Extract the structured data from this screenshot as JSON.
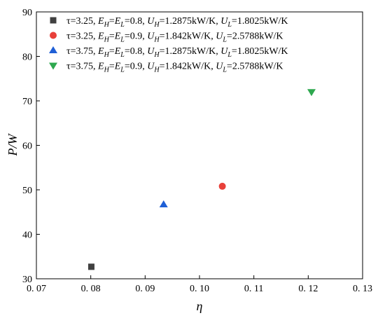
{
  "chart_data": {
    "type": "scatter",
    "xlabel": "η",
    "ylabel": "P/W",
    "xlim": [
      0.07,
      0.13
    ],
    "ylim": [
      30,
      90
    ],
    "xticks": [
      0.07,
      0.08,
      0.09,
      0.1,
      0.11,
      0.12,
      0.13
    ],
    "xtick_labels": [
      "0. 07",
      "0. 08",
      "0. 09",
      "0. 10",
      "0. 11",
      "0. 12",
      "0. 13"
    ],
    "yticks": [
      30,
      40,
      50,
      60,
      70,
      80,
      90
    ],
    "ytick_labels": [
      "30",
      "40",
      "50",
      "60",
      "70",
      "80",
      "90"
    ],
    "grid": false,
    "legend_position": "top-left",
    "series": [
      {
        "name": "τ=3.25, EH=EL=0.8, UH=1.2875kW/K, UL=1.8025kW/K",
        "legend_parts": [
          {
            "t": "τ=3.25, ",
            "i": false
          },
          {
            "t": "E",
            "i": true
          },
          {
            "t": "H",
            "i": true,
            "sub": true
          },
          {
            "t": "=",
            "i": false
          },
          {
            "t": "E",
            "i": true
          },
          {
            "t": "L",
            "i": true,
            "sub": true
          },
          {
            "t": "=0.8, ",
            "i": false
          },
          {
            "t": "U",
            "i": true
          },
          {
            "t": "H",
            "i": true,
            "sub": true
          },
          {
            "t": "=1.2875kW/K, ",
            "i": false
          },
          {
            "t": "U",
            "i": true
          },
          {
            "t": "L",
            "i": true,
            "sub": true
          },
          {
            "t": "=1.8025kW/K",
            "i": false
          }
        ],
        "marker": "square",
        "color": "#404040",
        "x": [
          0.0801
        ],
        "y": [
          32.7
        ]
      },
      {
        "name": "τ=3.25, EH=EL=0.9, UH=1.842kW/K, UL=2.5788kW/K",
        "legend_parts": [
          {
            "t": "τ=3.25, ",
            "i": false
          },
          {
            "t": "E",
            "i": true
          },
          {
            "t": "H",
            "i": true,
            "sub": true
          },
          {
            "t": "=",
            "i": false
          },
          {
            "t": "E",
            "i": true
          },
          {
            "t": "L",
            "i": true,
            "sub": true
          },
          {
            "t": "=0.9, ",
            "i": false
          },
          {
            "t": "U",
            "i": true
          },
          {
            "t": "H",
            "i": true,
            "sub": true
          },
          {
            "t": "=1.842kW/K, ",
            "i": false
          },
          {
            "t": "U",
            "i": true
          },
          {
            "t": "L",
            "i": true,
            "sub": true
          },
          {
            "t": "=2.5788kW/K",
            "i": false
          }
        ],
        "marker": "circle",
        "color": "#e8403a",
        "x": [
          0.1042
        ],
        "y": [
          50.8
        ]
      },
      {
        "name": "τ=3.75, EH=EL=0.8, UH=1.2875kW/K, UL=1.8025kW/K",
        "legend_parts": [
          {
            "t": "τ=3.75, ",
            "i": false
          },
          {
            "t": "E",
            "i": true
          },
          {
            "t": "H",
            "i": true,
            "sub": true
          },
          {
            "t": "=",
            "i": false
          },
          {
            "t": "E",
            "i": true
          },
          {
            "t": "L",
            "i": true,
            "sub": true
          },
          {
            "t": "=0.8, ",
            "i": false
          },
          {
            "t": "U",
            "i": true
          },
          {
            "t": "H",
            "i": true,
            "sub": true
          },
          {
            "t": "=1.2875kW/K, ",
            "i": false
          },
          {
            "t": "U",
            "i": true
          },
          {
            "t": "L",
            "i": true,
            "sub": true
          },
          {
            "t": "=1.8025kW/K",
            "i": false
          }
        ],
        "marker": "triangle-up",
        "color": "#1f5fd6",
        "x": [
          0.0934
        ],
        "y": [
          46.7
        ]
      },
      {
        "name": "τ=3.75, EH=EL=0.9, UH=1.842kW/K, UL=2.5788kW/K",
        "legend_parts": [
          {
            "t": "τ=3.75, ",
            "i": false
          },
          {
            "t": "E",
            "i": true
          },
          {
            "t": "H",
            "i": true,
            "sub": true
          },
          {
            "t": "=",
            "i": false
          },
          {
            "t": "E",
            "i": true
          },
          {
            "t": "L",
            "i": true,
            "sub": true
          },
          {
            "t": "=0.9, ",
            "i": false
          },
          {
            "t": "U",
            "i": true
          },
          {
            "t": "H",
            "i": true,
            "sub": true
          },
          {
            "t": "=1.842kW/K, ",
            "i": false
          },
          {
            "t": "U",
            "i": true
          },
          {
            "t": "L",
            "i": true,
            "sub": true
          },
          {
            "t": "=2.5788kW/K",
            "i": false
          }
        ],
        "marker": "triangle-down",
        "color": "#2ea84f",
        "x": [
          0.1206
        ],
        "y": [
          72.0
        ]
      }
    ]
  }
}
